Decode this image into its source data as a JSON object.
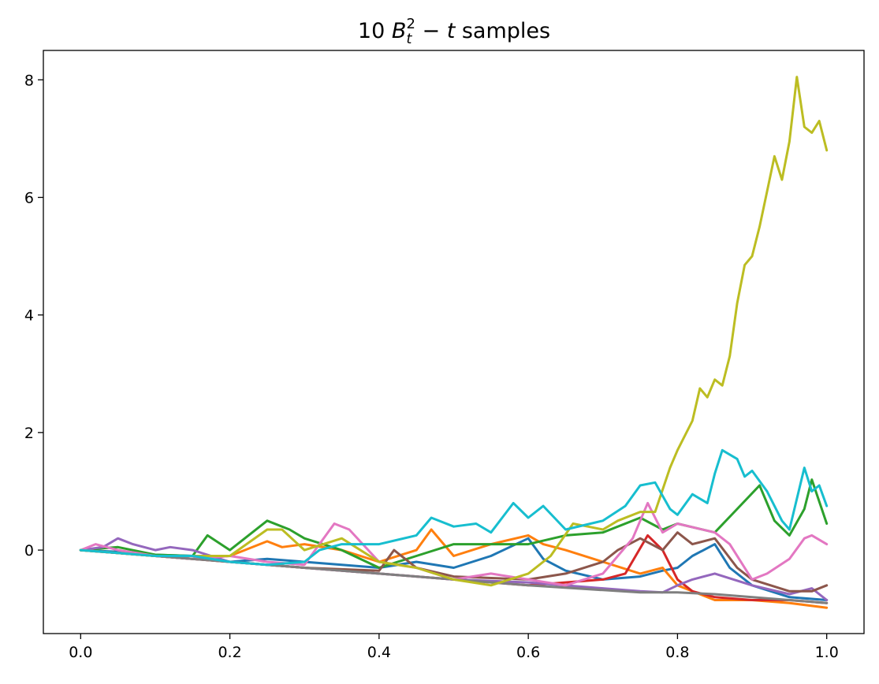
{
  "chart_data": {
    "type": "line",
    "title": {
      "prefix": "10 ",
      "b": "B",
      "sub": "t",
      "sup": "2",
      "minus": " − ",
      "t": "t",
      "suffix": " samples"
    },
    "xlabel": "",
    "ylabel": "",
    "xlim": [
      -0.05,
      1.05
    ],
    "ylim": [
      -1.42,
      8.5
    ],
    "xticks": [
      0.0,
      0.2,
      0.4,
      0.6,
      0.8,
      1.0
    ],
    "xtick_labels": [
      "0.0",
      "0.2",
      "0.4",
      "0.6",
      "0.8",
      "1.0"
    ],
    "yticks": [
      0,
      2,
      4,
      6,
      8
    ],
    "ytick_labels": [
      "0",
      "2",
      "4",
      "6",
      "8"
    ],
    "grid": false,
    "legend": "none",
    "series": [
      {
        "color": "#1f77b4",
        "x": [
          0,
          0.05,
          0.1,
          0.15,
          0.2,
          0.25,
          0.3,
          0.35,
          0.4,
          0.45,
          0.5,
          0.55,
          0.6,
          0.62,
          0.65,
          0.7,
          0.75,
          0.78,
          0.8,
          0.82,
          0.85,
          0.87,
          0.9,
          0.95,
          1.0
        ],
        "y": [
          0,
          -0.03,
          -0.08,
          -0.1,
          -0.2,
          -0.15,
          -0.2,
          -0.25,
          -0.3,
          -0.2,
          -0.3,
          -0.1,
          0.2,
          -0.15,
          -0.35,
          -0.5,
          -0.45,
          -0.35,
          -0.3,
          -0.1,
          0.1,
          -0.3,
          -0.6,
          -0.8,
          -0.85
        ]
      },
      {
        "color": "#ff7f0e",
        "x": [
          0,
          0.05,
          0.1,
          0.15,
          0.2,
          0.22,
          0.25,
          0.27,
          0.3,
          0.35,
          0.4,
          0.45,
          0.47,
          0.5,
          0.55,
          0.6,
          0.62,
          0.65,
          0.7,
          0.75,
          0.78,
          0.8,
          0.85,
          0.9,
          0.95,
          1.0
        ],
        "y": [
          0,
          -0.05,
          -0.1,
          -0.15,
          -0.1,
          0.0,
          0.15,
          0.05,
          0.1,
          0.0,
          -0.2,
          0.0,
          0.35,
          -0.1,
          0.1,
          0.25,
          0.1,
          0.0,
          -0.2,
          -0.4,
          -0.3,
          -0.6,
          -0.85,
          -0.85,
          -0.9,
          -0.98
        ]
      },
      {
        "color": "#2ca02c",
        "x": [
          0,
          0.05,
          0.1,
          0.15,
          0.17,
          0.2,
          0.25,
          0.28,
          0.3,
          0.35,
          0.4,
          0.45,
          0.5,
          0.55,
          0.6,
          0.65,
          0.7,
          0.75,
          0.78,
          0.8,
          0.85,
          0.88,
          0.91,
          0.93,
          0.95,
          0.97,
          0.98,
          1.0
        ],
        "y": [
          0,
          0.05,
          -0.08,
          -0.1,
          0.25,
          0.0,
          0.5,
          0.35,
          0.2,
          0.0,
          -0.3,
          -0.1,
          0.1,
          0.1,
          0.1,
          0.25,
          0.3,
          0.55,
          0.35,
          0.45,
          0.3,
          0.7,
          1.1,
          0.5,
          0.25,
          0.7,
          1.2,
          0.45
        ]
      },
      {
        "color": "#d62728",
        "x": [
          0,
          0.1,
          0.2,
          0.3,
          0.4,
          0.5,
          0.6,
          0.65,
          0.7,
          0.73,
          0.76,
          0.78,
          0.8,
          0.82,
          0.85,
          0.9,
          0.95,
          1.0
        ],
        "y": [
          0,
          -0.1,
          -0.2,
          -0.3,
          -0.4,
          -0.5,
          -0.6,
          -0.55,
          -0.5,
          -0.4,
          0.25,
          0.0,
          -0.5,
          -0.7,
          -0.8,
          -0.85,
          -0.85,
          -0.9
        ]
      },
      {
        "color": "#9467bd",
        "x": [
          0,
          0.03,
          0.05,
          0.07,
          0.1,
          0.12,
          0.15,
          0.2,
          0.25,
          0.3,
          0.4,
          0.5,
          0.6,
          0.7,
          0.75,
          0.78,
          0.8,
          0.82,
          0.85,
          0.9,
          0.95,
          0.98,
          1.0
        ],
        "y": [
          0,
          0.05,
          0.2,
          0.1,
          0.0,
          0.05,
          0.0,
          -0.2,
          -0.25,
          -0.3,
          -0.4,
          -0.5,
          -0.55,
          -0.65,
          -0.7,
          -0.72,
          -0.6,
          -0.5,
          -0.4,
          -0.6,
          -0.75,
          -0.65,
          -0.85
        ]
      },
      {
        "color": "#8c564b",
        "x": [
          0,
          0.1,
          0.2,
          0.3,
          0.4,
          0.42,
          0.45,
          0.5,
          0.6,
          0.65,
          0.7,
          0.72,
          0.75,
          0.78,
          0.8,
          0.82,
          0.85,
          0.88,
          0.9,
          0.95,
          0.98,
          1.0
        ],
        "y": [
          0,
          -0.1,
          -0.2,
          -0.3,
          -0.35,
          0.0,
          -0.3,
          -0.45,
          -0.5,
          -0.4,
          -0.2,
          0.0,
          0.2,
          0.0,
          0.3,
          0.1,
          0.2,
          -0.3,
          -0.5,
          -0.7,
          -0.7,
          -0.6
        ]
      },
      {
        "color": "#e377c2",
        "x": [
          0,
          0.02,
          0.05,
          0.1,
          0.15,
          0.2,
          0.25,
          0.3,
          0.34,
          0.36,
          0.4,
          0.45,
          0.5,
          0.55,
          0.6,
          0.65,
          0.7,
          0.74,
          0.76,
          0.78,
          0.8,
          0.85,
          0.87,
          0.9,
          0.92,
          0.95,
          0.97,
          0.98,
          1.0
        ],
        "y": [
          0,
          0.1,
          0.0,
          -0.1,
          -0.15,
          -0.1,
          -0.2,
          -0.25,
          0.45,
          0.35,
          -0.2,
          -0.3,
          -0.5,
          -0.4,
          -0.5,
          -0.6,
          -0.4,
          0.2,
          0.8,
          0.3,
          0.45,
          0.3,
          0.1,
          -0.5,
          -0.4,
          -0.15,
          0.2,
          0.25,
          0.1
        ]
      },
      {
        "color": "#7f7f7f",
        "x": [
          0,
          0.1,
          0.2,
          0.3,
          0.4,
          0.5,
          0.6,
          0.7,
          0.75,
          0.8,
          0.85,
          0.9,
          0.95,
          1.0
        ],
        "y": [
          0,
          -0.1,
          -0.2,
          -0.3,
          -0.4,
          -0.5,
          -0.6,
          -0.68,
          -0.72,
          -0.72,
          -0.75,
          -0.8,
          -0.85,
          -0.9
        ]
      },
      {
        "color": "#bcbd22",
        "x": [
          0,
          0.1,
          0.2,
          0.25,
          0.27,
          0.3,
          0.35,
          0.4,
          0.45,
          0.5,
          0.55,
          0.6,
          0.63,
          0.66,
          0.68,
          0.7,
          0.72,
          0.75,
          0.77,
          0.79,
          0.8,
          0.82,
          0.83,
          0.84,
          0.85,
          0.86,
          0.87,
          0.88,
          0.89,
          0.9,
          0.91,
          0.92,
          0.93,
          0.94,
          0.95,
          0.96,
          0.97,
          0.98,
          0.99,
          1.0
        ],
        "y": [
          0,
          -0.1,
          -0.1,
          0.35,
          0.35,
          0.0,
          0.2,
          -0.2,
          -0.3,
          -0.5,
          -0.6,
          -0.4,
          -0.1,
          0.45,
          0.4,
          0.35,
          0.5,
          0.65,
          0.65,
          1.4,
          1.7,
          2.2,
          2.75,
          2.6,
          2.9,
          2.8,
          3.3,
          4.2,
          4.85,
          5.0,
          5.5,
          6.1,
          6.7,
          6.3,
          6.95,
          8.05,
          7.2,
          7.1,
          7.3,
          6.8
        ]
      },
      {
        "color": "#17becf",
        "x": [
          0,
          0.05,
          0.1,
          0.15,
          0.2,
          0.25,
          0.3,
          0.32,
          0.35,
          0.4,
          0.45,
          0.47,
          0.5,
          0.53,
          0.55,
          0.58,
          0.6,
          0.62,
          0.65,
          0.7,
          0.73,
          0.75,
          0.77,
          0.79,
          0.8,
          0.82,
          0.84,
          0.85,
          0.86,
          0.88,
          0.89,
          0.9,
          0.92,
          0.94,
          0.95,
          0.97,
          0.98,
          0.99,
          1.0
        ],
        "y": [
          0,
          -0.05,
          -0.1,
          -0.1,
          -0.2,
          -0.25,
          -0.2,
          0.0,
          0.1,
          0.1,
          0.25,
          0.55,
          0.4,
          0.45,
          0.3,
          0.8,
          0.55,
          0.75,
          0.35,
          0.5,
          0.75,
          1.1,
          1.15,
          0.7,
          0.6,
          0.95,
          0.8,
          1.3,
          1.7,
          1.55,
          1.25,
          1.35,
          1.0,
          0.5,
          0.35,
          1.4,
          1.0,
          1.1,
          0.75
        ]
      }
    ]
  }
}
